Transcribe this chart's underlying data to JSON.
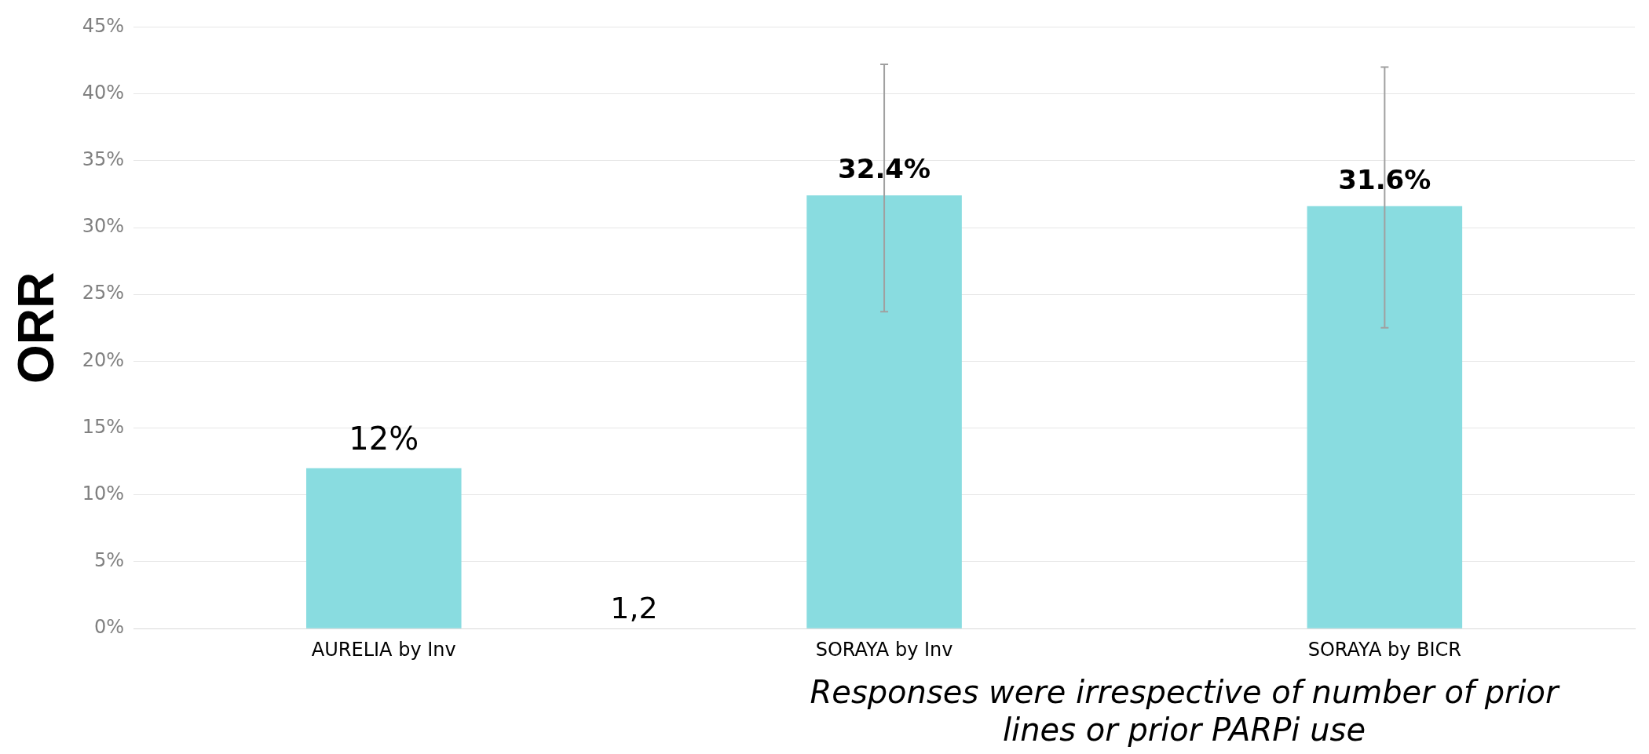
{
  "chart_data": {
    "type": "bar",
    "ylabel": "ORR",
    "categories": [
      "AURELIA by Inv",
      "SORAYA by Inv",
      "SORAYA by BICR"
    ],
    "values": [
      12,
      32.4,
      31.6
    ],
    "color": "#89dce0",
    "errors": [
      null,
      [
        23.7,
        42.2
      ],
      [
        22.5,
        42.0
      ]
    ],
    "value_labels": [
      "12%",
      "32.4%",
      "31.6%"
    ],
    "ylim": [
      0,
      45
    ],
    "yticks": [
      {
        "value": 0,
        "label": "0%"
      },
      {
        "value": 5,
        "label": "5%"
      },
      {
        "value": 10,
        "label": "10%"
      },
      {
        "value": 15,
        "label": "15%"
      },
      {
        "value": 20,
        "label": "20%"
      },
      {
        "value": 25,
        "label": "25%"
      },
      {
        "value": 30,
        "label": "30%"
      },
      {
        "value": 35,
        "label": "35%"
      },
      {
        "value": 40,
        "label": "40%"
      },
      {
        "value": 45,
        "label": "45%"
      }
    ],
    "grid": "y",
    "legend": false,
    "annotations": [
      "1,2",
      "Responses were irrespective of number of prior lines or prior PARPi use"
    ]
  }
}
